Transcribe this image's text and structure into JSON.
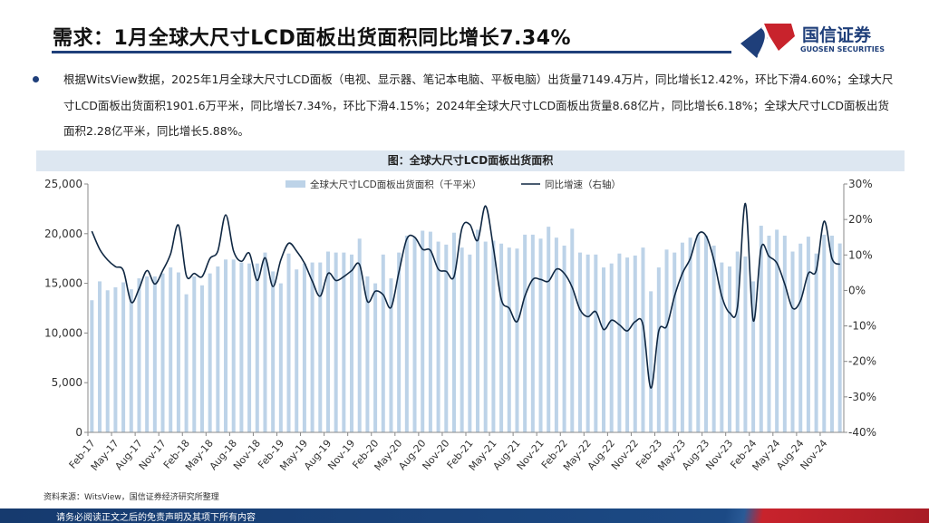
{
  "header": {
    "title": "需求：1月全球大尺寸LCD面板出货面积同比增长7.34%",
    "logo_name": "国信证券",
    "logo_en": "GUOSEN SECURITIES"
  },
  "bullet": {
    "text": "根据WitsView数据，2025年1月全球大尺寸LCD面板（电视、显示器、笔记本电脑、平板电脑）出货量7149.4万片，同比增长12.42%，环比下滑4.60%；全球大尺寸LCD面板出货面积1901.6万平米，同比增长7.34%，环比下滑4.15%；2024年全球大尺寸LCD面板出货量8.68亿片，同比增长6.18%；全球大尺寸LCD面板出货面积2.28亿平米，同比增长5.88%。"
  },
  "caption": "图：全球大尺寸LCD面板出货面积",
  "source": "资料来源：WitsView，国信证券经济研究所整理",
  "footer": "请务必阅读正文之后的免责声明及其项下所有内容",
  "colors": {
    "bar": "#bdd3e8",
    "line": "#0f2742",
    "brand": "#1f3f7a",
    "accent": "#c8232c"
  },
  "chart_data": {
    "type": "bar+line",
    "legend_position": "top",
    "grid": false,
    "categories": [
      "Feb-17",
      "Mar-17",
      "Apr-17",
      "May-17",
      "Jun-17",
      "Jul-17",
      "Aug-17",
      "Sep-17",
      "Oct-17",
      "Nov-17",
      "Dec-17",
      "Jan-18",
      "Feb-18",
      "Mar-18",
      "Apr-18",
      "May-18",
      "Jun-18",
      "Jul-18",
      "Aug-18",
      "Sep-18",
      "Oct-18",
      "Nov-18",
      "Dec-18",
      "Jan-19",
      "Feb-19",
      "Mar-19",
      "Apr-19",
      "May-19",
      "Jun-19",
      "Jul-19",
      "Aug-19",
      "Sep-19",
      "Oct-19",
      "Nov-19",
      "Dec-19",
      "Jan-20",
      "Feb-20",
      "Mar-20",
      "Apr-20",
      "May-20",
      "Jun-20",
      "Jul-20",
      "Aug-20",
      "Sep-20",
      "Oct-20",
      "Nov-20",
      "Dec-20",
      "Jan-21",
      "Feb-21",
      "Mar-21",
      "Apr-21",
      "May-21",
      "Jun-21",
      "Jul-21",
      "Aug-21",
      "Sep-21",
      "Oct-21",
      "Nov-21",
      "Dec-21",
      "Jan-22",
      "Feb-22",
      "Mar-22",
      "Apr-22",
      "May-22",
      "Jun-22",
      "Jul-22",
      "Aug-22",
      "Sep-22",
      "Oct-22",
      "Nov-22",
      "Dec-22",
      "Jan-23",
      "Feb-23",
      "Mar-23",
      "Apr-23",
      "May-23",
      "Jun-23",
      "Jul-23",
      "Aug-23",
      "Sep-23",
      "Oct-23",
      "Nov-23",
      "Dec-23",
      "Jan-24",
      "Feb-24",
      "Mar-24",
      "Apr-24",
      "May-24",
      "Jun-24",
      "Jul-24",
      "Aug-24",
      "Sep-24",
      "Oct-24",
      "Nov-24",
      "Dec-24",
      "Jan-25"
    ],
    "x_tick_labels": [
      "Feb-17",
      "May-17",
      "Aug-17",
      "Nov-17",
      "Feb-18",
      "May-18",
      "Aug-18",
      "Nov-18",
      "Feb-19",
      "May-19",
      "Aug-19",
      "Nov-19",
      "Feb-20",
      "May-20",
      "Aug-20",
      "Nov-20",
      "Feb-21",
      "May-21",
      "Aug-21",
      "Nov-21",
      "Feb-22",
      "May-22",
      "Aug-22",
      "Nov-22",
      "Feb-23",
      "May-23",
      "Aug-23",
      "Nov-23",
      "Feb-24",
      "May-24",
      "Aug-24",
      "Nov-24"
    ],
    "series": [
      {
        "name": "全球大尺寸LCD面板出货面积（千平米）",
        "type": "bar",
        "axis": "left",
        "values": [
          13300,
          15200,
          14300,
          14600,
          15100,
          14400,
          15500,
          15700,
          15700,
          16000,
          16600,
          16100,
          13900,
          15700,
          14800,
          16000,
          16700,
          17400,
          17400,
          17100,
          17000,
          17000,
          18100,
          16200,
          15000,
          18000,
          16400,
          17000,
          17100,
          17100,
          18200,
          18100,
          18100,
          17900,
          19500,
          15700,
          15000,
          17900,
          15500,
          18100,
          19800,
          19600,
          20300,
          20200,
          19200,
          18900,
          20100,
          18600,
          17900,
          20400,
          19200,
          19300,
          19000,
          18600,
          18500,
          19900,
          19900,
          19500,
          20700,
          19600,
          18800,
          20500,
          18100,
          17900,
          17900,
          16600,
          17000,
          18000,
          17600,
          17800,
          18600,
          14200,
          16600,
          18400,
          18100,
          19100,
          19600,
          19900,
          19800,
          18800,
          17100,
          16700,
          18200,
          17700,
          15200,
          20800,
          19800,
          20400,
          19800,
          18200,
          19000,
          19700,
          18000,
          19900,
          19800,
          19016
        ]
      },
      {
        "name": "同比增速（右轴）",
        "type": "line",
        "axis": "right",
        "values": [
          16.7,
          11.6,
          8.6,
          6.7,
          5.6,
          -3.3,
          0.5,
          5.6,
          1.8,
          5.6,
          10.3,
          18.4,
          4.2,
          4.8,
          3.9,
          9.0,
          11.1,
          21.3,
          11.1,
          8.2,
          10.5,
          2.8,
          9.2,
          1.1,
          8.6,
          13.3,
          11.1,
          7.7,
          2.6,
          -1.6,
          4.8,
          2.8,
          3.9,
          5.6,
          7.3,
          -3.1,
          -0.2,
          -1.2,
          -4.8,
          5.2,
          14.5,
          15.0,
          11.6,
          11.3,
          6.0,
          5.4,
          3.9,
          17.5,
          18.6,
          14.1,
          23.8,
          12.0,
          -2.5,
          -5.0,
          -8.8,
          -1.6,
          3.1,
          3.1,
          2.6,
          6.0,
          4.8,
          0.9,
          -5.4,
          -7.4,
          -6.0,
          -11.0,
          -8.4,
          -9.7,
          -11.4,
          -8.8,
          -9.7,
          -27.5,
          -11.4,
          -10.1,
          -1.6,
          4.8,
          9.0,
          15.8,
          15.4,
          8.6,
          -1.6,
          -6.3,
          -4.6,
          24.5,
          -8.5,
          12.0,
          9.6,
          7.7,
          1.8,
          -5.0,
          -2.9,
          4.8,
          5.6,
          19.5,
          9.0,
          7.34
        ]
      }
    ],
    "left_axis": {
      "min": 0,
      "max": 25000,
      "ticks": [
        "0",
        "5,000",
        "10,000",
        "15,000",
        "20,000",
        "25,000"
      ]
    },
    "right_axis": {
      "min": -40,
      "max": 30,
      "ticks": [
        "-40%",
        "-30%",
        "-20%",
        "-10%",
        "0%",
        "10%",
        "20%",
        "30%"
      ]
    }
  }
}
